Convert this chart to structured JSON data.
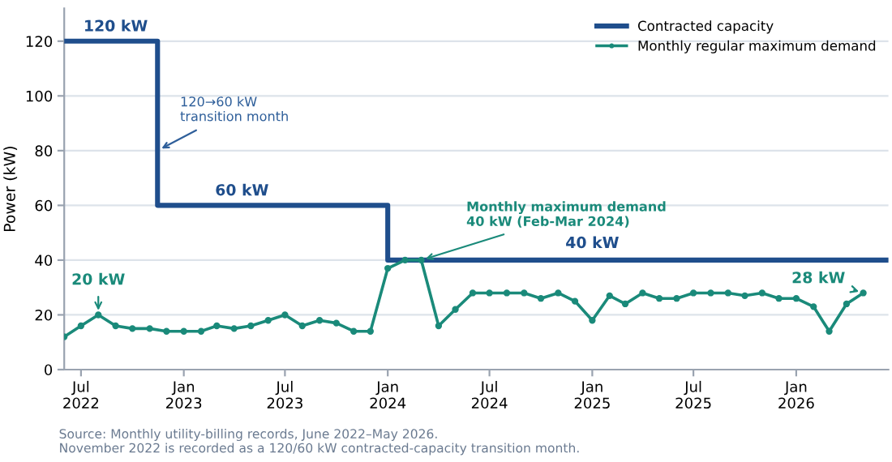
{
  "chart_data": {
    "type": "line",
    "ylabel": "Power (kW)",
    "x": [
      "2022-06",
      "2022-07",
      "2022-08",
      "2022-09",
      "2022-10",
      "2022-11",
      "2022-12",
      "2023-01",
      "2023-02",
      "2023-03",
      "2023-04",
      "2023-05",
      "2023-06",
      "2023-07",
      "2023-08",
      "2023-09",
      "2023-10",
      "2023-11",
      "2023-12",
      "2024-01",
      "2024-02",
      "2024-03",
      "2024-04",
      "2024-05",
      "2024-06",
      "2024-07",
      "2024-08",
      "2024-09",
      "2024-10",
      "2024-11",
      "2024-12",
      "2025-01",
      "2025-02",
      "2025-03",
      "2025-04",
      "2025-05",
      "2025-06",
      "2025-07",
      "2025-08",
      "2025-09",
      "2025-10",
      "2025-11",
      "2025-12",
      "2026-01",
      "2026-02",
      "2026-03",
      "2026-04",
      "2026-05"
    ],
    "series": [
      {
        "name": "Contracted capacity",
        "color": "#1f4e8c",
        "marker": "none",
        "x": [
          "2022-06-01",
          "2022-11-15",
          "2022-11-15",
          "2024-01-01",
          "2024-01-01",
          "2026-06-15"
        ],
        "values": [
          120,
          120,
          60,
          60,
          40,
          40
        ]
      },
      {
        "name": "Monthly regular maximum demand",
        "color": "#1a8a7a",
        "marker": "circle",
        "values": [
          12,
          16,
          20,
          16,
          15,
          15,
          14,
          14,
          14,
          16,
          15,
          16,
          18,
          20,
          16,
          18,
          17,
          14,
          14,
          37,
          40,
          40,
          16,
          22,
          28,
          28,
          28,
          28,
          26,
          28,
          25,
          18,
          27,
          24,
          28,
          26,
          26,
          28,
          28,
          28,
          27,
          28,
          26,
          26,
          23,
          14,
          24,
          28
        ]
      }
    ],
    "xlim": [
      "2022-06-01",
      "2026-06-15"
    ],
    "xticks": [
      {
        "value": "2022-07",
        "label": "Jul\n2022"
      },
      {
        "value": "2023-01",
        "label": "Jan\n2023"
      },
      {
        "value": "2023-07",
        "label": "Jul\n2023"
      },
      {
        "value": "2024-01",
        "label": "Jan\n2024"
      },
      {
        "value": "2024-07",
        "label": "Jul\n2024"
      },
      {
        "value": "2025-01",
        "label": "Jan\n2025"
      },
      {
        "value": "2025-07",
        "label": "Jul\n2025"
      },
      {
        "value": "2026-01",
        "label": "Jan\n2026"
      }
    ],
    "ylim": [
      0,
      132
    ],
    "yticks": [
      0,
      20,
      40,
      60,
      80,
      100,
      120
    ],
    "grid": "y",
    "legend": "top right",
    "line_style": "solid",
    "annotations": [
      {
        "text": "120 kW",
        "x": "2022-09-01",
        "y": 120
      },
      {
        "text": "60 kW",
        "x": "2023-04-15",
        "y": 60
      },
      {
        "text": "40 kW",
        "x": "2025-01-01",
        "y": 40
      },
      {
        "text": "120→60 kW\ntransition month",
        "x": "2022-11-15",
        "y": 80
      },
      {
        "text": "20 kW",
        "x": "2022-08",
        "y": 20
      },
      {
        "text": "Monthly maximum demand\n40 kW (Feb-Mar 2024)",
        "x": "2024-03",
        "y": 40
      },
      {
        "text": "28 kW",
        "x": "2026-05",
        "y": 28
      },
      "Source: Monthly utility-billing records, June 2022–May 2026.\nNovember 2022 is recorded as a 120/60 kW contracted-capacity transition month."
    ]
  }
}
